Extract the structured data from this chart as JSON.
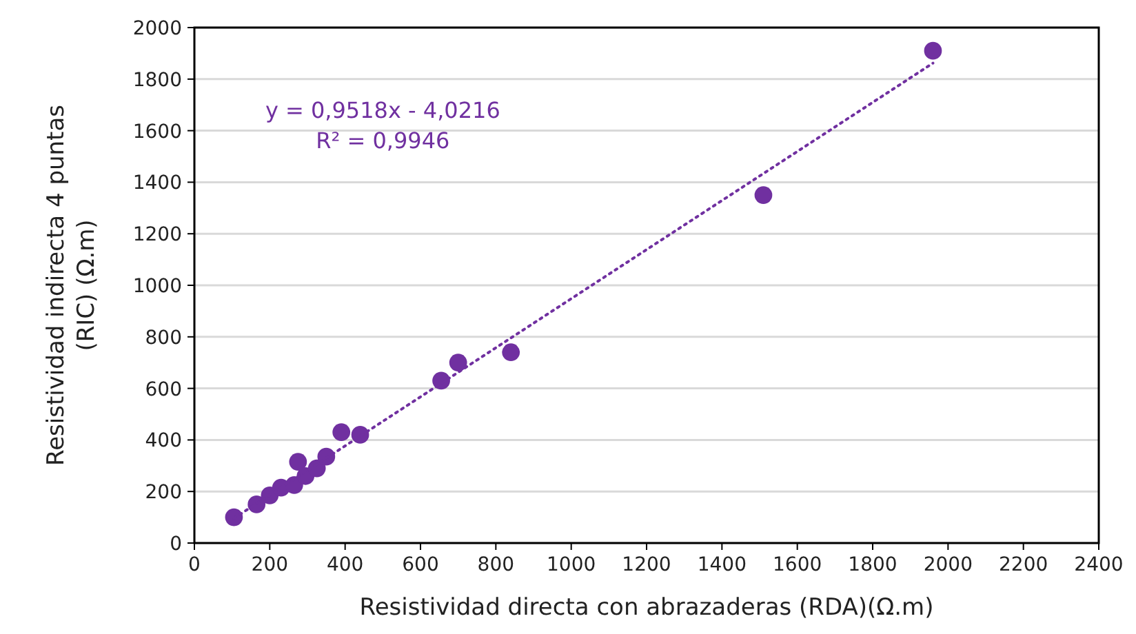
{
  "chart_data": {
    "type": "scatter",
    "xlabel": "Resistividad directa con abrazaderas (RDA)(Ω.m)",
    "ylabel": "Resistividad indirecta  4 puntas\n(RIC)  (Ω.m)",
    "xlim": [
      0,
      2400
    ],
    "xticks": [
      0,
      200,
      400,
      600,
      800,
      1000,
      1200,
      1400,
      1600,
      1800,
      2000,
      2200,
      2400
    ],
    "ylim": [
      0,
      2000
    ],
    "yticks": [
      0,
      200,
      400,
      600,
      800,
      1000,
      1200,
      1400,
      1600,
      1800,
      2000
    ],
    "grid": "y",
    "annotations": [
      "y = 0,9518x - 4,0216",
      "R² = 0,9946"
    ],
    "series": [
      {
        "type": "scatter",
        "marker": "circle",
        "color": "#7030a0",
        "x": [
          105,
          165,
          200,
          230,
          265,
          275,
          295,
          325,
          350,
          390,
          440,
          655,
          700,
          840,
          1510,
          1960
        ],
        "values": [
          100,
          150,
          185,
          215,
          225,
          315,
          260,
          290,
          335,
          430,
          420,
          630,
          700,
          740,
          1350,
          1910
        ]
      },
      {
        "type": "line",
        "color": "#7030a0",
        "line_style": "dotted",
        "marker": "none",
        "x": [
          105,
          1960
        ],
        "values": [
          96,
          1862
        ]
      }
    ]
  }
}
